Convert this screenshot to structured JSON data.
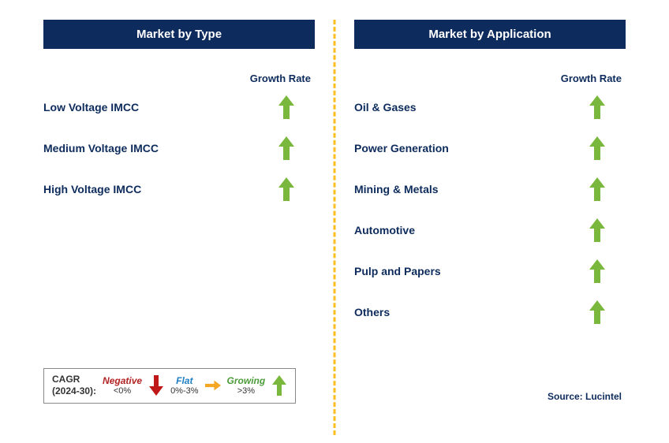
{
  "colors": {
    "header_bg": "#0d2b5c",
    "header_text": "#ffffff",
    "label_text": "#0d2b5c",
    "divider": "#fbbf24",
    "arrow_up": "#7ab83d",
    "arrow_down": "#c01818",
    "arrow_flat": "#f5a623",
    "legend_border": "#888888"
  },
  "left": {
    "header": "Market by Type",
    "growth_label": "Growth Rate",
    "items": [
      {
        "label": "Low Voltage IMCC",
        "direction": "up"
      },
      {
        "label": "Medium Voltage IMCC",
        "direction": "up"
      },
      {
        "label": "High Voltage IMCC",
        "direction": "up"
      }
    ]
  },
  "right": {
    "header": "Market by Application",
    "growth_label": "Growth Rate",
    "items": [
      {
        "label": "Oil & Gases",
        "direction": "up"
      },
      {
        "label": "Power Generation",
        "direction": "up"
      },
      {
        "label": "Mining & Metals",
        "direction": "up"
      },
      {
        "label": "Automotive",
        "direction": "up"
      },
      {
        "label": "Pulp and Papers",
        "direction": "up"
      },
      {
        "label": "Others",
        "direction": "up"
      }
    ]
  },
  "legend": {
    "cagr_line1": "CAGR",
    "cagr_line2": "(2024-30):",
    "negative": {
      "title": "Negative",
      "sub": "<0%"
    },
    "flat": {
      "title": "Flat",
      "sub": "0%-3%"
    },
    "growing": {
      "title": "Growing",
      "sub": ">3%"
    }
  },
  "source": "Source: Lucintel"
}
